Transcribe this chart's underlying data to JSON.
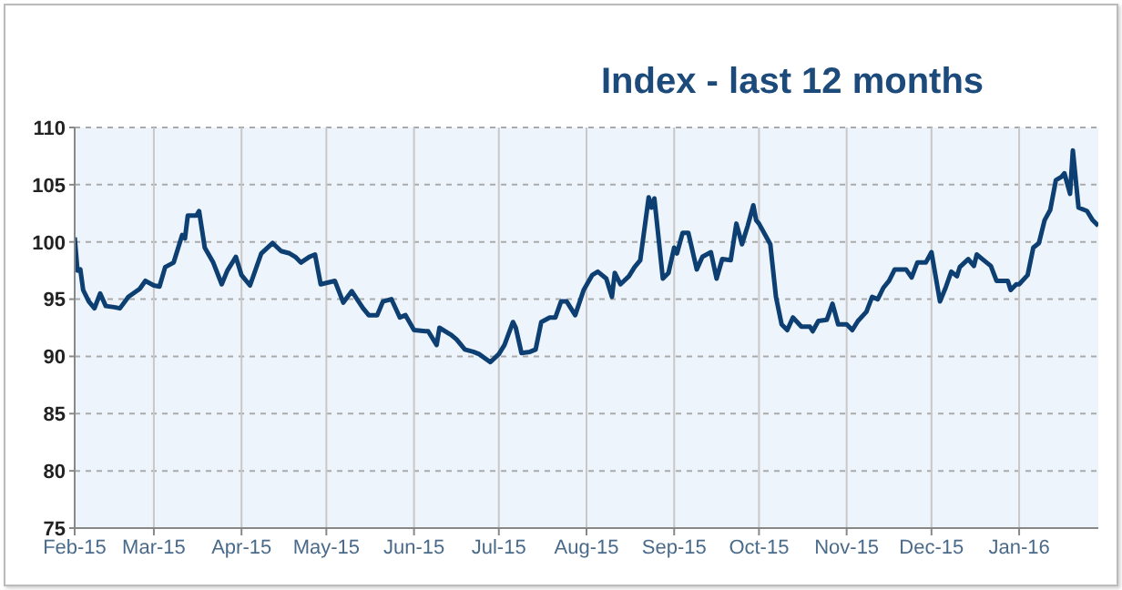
{
  "chart_data": {
    "type": "line",
    "title": "Index - last 12 months",
    "x": [
      "2015-02-01",
      "2015-02-02",
      "2015-02-03",
      "2015-02-04",
      "2015-02-06",
      "2015-02-08",
      "2015-02-10",
      "2015-02-12",
      "2015-02-15",
      "2015-02-17",
      "2015-02-20",
      "2015-02-24",
      "2015-02-26",
      "2015-03-01",
      "2015-03-03",
      "2015-03-05",
      "2015-03-08",
      "2015-03-11",
      "2015-03-12",
      "2015-03-13",
      "2015-03-16",
      "2015-03-17",
      "2015-03-19",
      "2015-03-22",
      "2015-03-25",
      "2015-03-27",
      "2015-03-30",
      "2015-04-01",
      "2015-04-04",
      "2015-04-08",
      "2015-04-12",
      "2015-04-15",
      "2015-04-18",
      "2015-04-20",
      "2015-04-22",
      "2015-04-25",
      "2015-04-27",
      "2015-04-29",
      "2015-05-04",
      "2015-05-07",
      "2015-05-10",
      "2015-05-14",
      "2015-05-16",
      "2015-05-19",
      "2015-05-21",
      "2015-05-24",
      "2015-05-27",
      "2015-05-29",
      "2015-06-01",
      "2015-06-05",
      "2015-06-06",
      "2015-06-09",
      "2015-06-10",
      "2015-06-14",
      "2015-06-16",
      "2015-06-19",
      "2015-06-22",
      "2015-06-24",
      "2015-06-28",
      "2015-07-01",
      "2015-07-03",
      "2015-07-06",
      "2015-07-07",
      "2015-07-09",
      "2015-07-12",
      "2015-07-14",
      "2015-07-16",
      "2015-07-19",
      "2015-07-21",
      "2015-07-23",
      "2015-07-25",
      "2015-07-28",
      "2015-07-31",
      "2015-08-03",
      "2015-08-05",
      "2015-08-08",
      "2015-08-10",
      "2015-08-11",
      "2015-08-13",
      "2015-08-16",
      "2015-08-18",
      "2015-08-20",
      "2015-08-23",
      "2015-08-24",
      "2015-08-25",
      "2015-08-28",
      "2015-08-30",
      "2015-09-01",
      "2015-09-02",
      "2015-09-04",
      "2015-09-06",
      "2015-09-09",
      "2015-09-11",
      "2015-09-14",
      "2015-09-16",
      "2015-09-18",
      "2015-09-21",
      "2015-09-23",
      "2015-09-25",
      "2015-09-27",
      "2015-09-29",
      "2015-09-30",
      "2015-10-01",
      "2015-10-05",
      "2015-10-07",
      "2015-10-09",
      "2015-10-11",
      "2015-10-13",
      "2015-10-16",
      "2015-10-19",
      "2015-10-20",
      "2015-10-22",
      "2015-10-25",
      "2015-10-27",
      "2015-10-29",
      "2015-11-01",
      "2015-11-03",
      "2015-11-05",
      "2015-11-08",
      "2015-11-10",
      "2015-11-12",
      "2015-11-14",
      "2015-11-16",
      "2015-11-18",
      "2015-11-20",
      "2015-11-22",
      "2015-11-24",
      "2015-11-26",
      "2015-11-29",
      "2015-12-01",
      "2015-12-04",
      "2015-12-06",
      "2015-12-08",
      "2015-12-10",
      "2015-12-11",
      "2015-12-14",
      "2015-12-16",
      "2015-12-17",
      "2015-12-20",
      "2015-12-22",
      "2015-12-24",
      "2015-12-28",
      "2015-12-29",
      "2015-12-31",
      "2016-01-01",
      "2016-01-04",
      "2016-01-06",
      "2016-01-08",
      "2016-01-10",
      "2016-01-12",
      "2016-01-14",
      "2016-01-16",
      "2016-01-17",
      "2016-01-19",
      "2016-01-20",
      "2016-01-22",
      "2016-01-25",
      "2016-01-27",
      "2016-01-29"
    ],
    "series": [
      {
        "color": "#0d3f73",
        "values": [
          100.4,
          97.5,
          97.6,
          95.8,
          94.8,
          94.2,
          95.5,
          94.4,
          94.3,
          94.2,
          95.2,
          95.9,
          96.6,
          96.2,
          96.1,
          97.8,
          98.2,
          100.6,
          100.3,
          102.3,
          102.3,
          102.7,
          99.5,
          98.2,
          96.3,
          97.5,
          98.7,
          97.1,
          96.2,
          99.0,
          99.9,
          99.2,
          99.0,
          98.7,
          98.2,
          98.7,
          98.9,
          96.3,
          96.6,
          94.7,
          95.7,
          94.2,
          93.6,
          93.6,
          94.8,
          95.0,
          93.4,
          93.6,
          92.3,
          92.2,
          92.2,
          91.0,
          92.5,
          91.9,
          91.5,
          90.6,
          90.4,
          90.2,
          89.5,
          90.2,
          91.0,
          93.0,
          92.5,
          90.3,
          90.4,
          90.6,
          93.0,
          93.4,
          93.4,
          94.8,
          94.8,
          93.6,
          95.8,
          97.1,
          97.4,
          96.8,
          95.2,
          97.3,
          96.3,
          97.0,
          97.8,
          98.4,
          103.9,
          103.0,
          103.8,
          96.8,
          97.3,
          99.5,
          99.0,
          100.8,
          100.8,
          97.6,
          98.7,
          99.1,
          96.8,
          98.5,
          98.4,
          101.6,
          99.8,
          101.4,
          103.2,
          101.9,
          101.6,
          99.8,
          95.2,
          92.8,
          92.3,
          93.4,
          92.6,
          92.6,
          92.2,
          93.1,
          93.2,
          94.6,
          92.8,
          92.8,
          92.3,
          93.1,
          93.9,
          95.2,
          95.0,
          96.0,
          96.6,
          97.6,
          97.6,
          97.6,
          96.9,
          98.2,
          98.2,
          99.1,
          94.8,
          96.0,
          97.4,
          97.0,
          97.8,
          98.5,
          97.9,
          98.9,
          98.3,
          97.9,
          96.6,
          96.6,
          95.8,
          96.3,
          96.3,
          97.1,
          99.5,
          99.9,
          101.9,
          102.8,
          105.4,
          105.7,
          106.0,
          104.2,
          108.0,
          103.0,
          102.7,
          101.9,
          101.4
        ]
      }
    ],
    "xlim": [
      "2015-02-01",
      "2016-01-29"
    ],
    "xticks": [
      {
        "value": "2015-02-01",
        "label": "Feb-15"
      },
      {
        "value": "2015-03-01",
        "label": "Mar-15"
      },
      {
        "value": "2015-04-01",
        "label": "Apr-15"
      },
      {
        "value": "2015-05-01",
        "label": "May-15"
      },
      {
        "value": "2015-06-01",
        "label": "Jun-15"
      },
      {
        "value": "2015-07-01",
        "label": "Jul-15"
      },
      {
        "value": "2015-08-01",
        "label": "Aug-15"
      },
      {
        "value": "2015-09-01",
        "label": "Sep-15"
      },
      {
        "value": "2015-10-01",
        "label": "Oct-15"
      },
      {
        "value": "2015-11-01",
        "label": "Nov-15"
      },
      {
        "value": "2015-12-01",
        "label": "Dec-15"
      },
      {
        "value": "2016-01-01",
        "label": "Jan-16"
      }
    ],
    "ylim": [
      75,
      110
    ],
    "yticks": [
      75,
      80,
      85,
      90,
      95,
      100,
      105,
      110
    ],
    "grid": true
  }
}
